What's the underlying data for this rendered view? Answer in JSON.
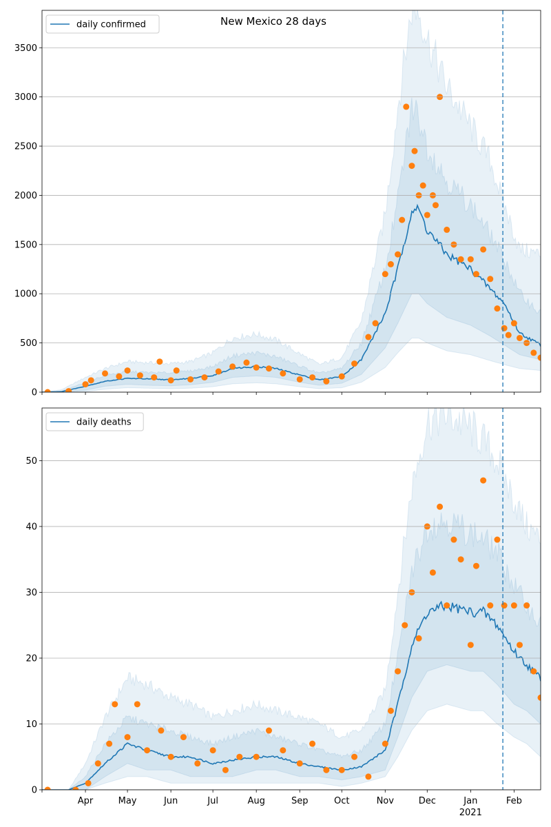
{
  "chart_data": [
    {
      "type": "line",
      "title": "New Mexico 28 days",
      "legend": {
        "label": "daily confirmed",
        "placement": "top-left"
      },
      "xlim": [
        "2020-03-01",
        "2021-02-20"
      ],
      "ylim": [
        0,
        3880
      ],
      "yticks": [
        0,
        500,
        1000,
        1500,
        2000,
        2500,
        3000,
        3500
      ],
      "grid": "horizontal",
      "forecast_start": "2021-01-24",
      "colors": {
        "line": "#1f77b4",
        "points": "#ff7f0e",
        "band": "#1f77b4"
      },
      "line_anchors": {
        "x": [
          "2020-03-01",
          "2020-03-15",
          "2020-04-01",
          "2020-04-15",
          "2020-05-01",
          "2020-05-15",
          "2020-06-01",
          "2020-06-15",
          "2020-07-01",
          "2020-07-15",
          "2020-08-01",
          "2020-08-15",
          "2020-09-01",
          "2020-09-15",
          "2020-10-01",
          "2020-10-15",
          "2020-11-01",
          "2020-11-10",
          "2020-11-20",
          "2020-11-25",
          "2020-12-01",
          "2020-12-15",
          "2021-01-01",
          "2021-01-15",
          "2021-01-25",
          "2021-02-05",
          "2021-02-20"
        ],
        "y": [
          0,
          5,
          60,
          110,
          140,
          135,
          125,
          140,
          170,
          240,
          260,
          240,
          175,
          125,
          160,
          330,
          800,
          1250,
          1850,
          1850,
          1650,
          1400,
          1250,
          1050,
          900,
          600,
          480
        ]
      },
      "bands": [
        {
          "lower": [
            0,
            0,
            20,
            60,
            80,
            70,
            65,
            75,
            100,
            150,
            165,
            150,
            100,
            70,
            90,
            180,
            450,
            700,
            1000,
            1000,
            900,
            760,
            680,
            570,
            480,
            380,
            330
          ],
          "upper": [
            0,
            10,
            100,
            170,
            210,
            200,
            195,
            215,
            260,
            370,
            400,
            360,
            265,
            190,
            240,
            500,
            1250,
            1950,
            2900,
            2800,
            2500,
            2150,
            1900,
            1600,
            1350,
            1000,
            800
          ]
        },
        {
          "lower": [
            0,
            0,
            5,
            30,
            45,
            40,
            35,
            40,
            55,
            85,
            95,
            85,
            55,
            35,
            45,
            100,
            250,
            400,
            550,
            550,
            500,
            420,
            380,
            320,
            280,
            240,
            220
          ],
          "upper": [
            0,
            25,
            150,
            240,
            310,
            300,
            290,
            310,
            400,
            550,
            590,
            530,
            390,
            280,
            350,
            720,
            1800,
            2900,
            3900,
            3880,
            3600,
            3100,
            2700,
            2350,
            1900,
            1450,
            1400
          ]
        }
      ],
      "points": {
        "x": [
          "2020-03-05",
          "2020-03-20",
          "2020-04-01",
          "2020-04-05",
          "2020-04-15",
          "2020-04-25",
          "2020-05-01",
          "2020-05-10",
          "2020-05-20",
          "2020-05-24",
          "2020-06-01",
          "2020-06-05",
          "2020-06-15",
          "2020-06-25",
          "2020-07-05",
          "2020-07-15",
          "2020-07-25",
          "2020-08-01",
          "2020-08-10",
          "2020-08-20",
          "2020-09-01",
          "2020-09-10",
          "2020-09-20",
          "2020-10-01",
          "2020-10-10",
          "2020-10-20",
          "2020-10-25",
          "2020-11-01",
          "2020-11-05",
          "2020-11-10",
          "2020-11-13",
          "2020-11-16",
          "2020-11-20",
          "2020-11-22",
          "2020-11-25",
          "2020-11-28",
          "2020-12-01",
          "2020-12-05",
          "2020-12-07",
          "2020-12-10",
          "2020-12-15",
          "2020-12-20",
          "2020-12-25",
          "2021-01-01",
          "2021-01-05",
          "2021-01-10",
          "2021-01-15",
          "2021-01-20",
          "2021-01-25",
          "2021-01-28",
          "2021-02-01",
          "2021-02-05",
          "2021-02-10",
          "2021-02-15",
          "2021-02-20"
        ],
        "y": [
          0,
          10,
          80,
          120,
          190,
          160,
          220,
          170,
          150,
          310,
          120,
          220,
          130,
          150,
          210,
          260,
          300,
          250,
          240,
          190,
          130,
          150,
          110,
          160,
          290,
          560,
          700,
          1200,
          1300,
          1400,
          1750,
          2900,
          2300,
          2450,
          2000,
          2100,
          1800,
          2000,
          1900,
          3000,
          1650,
          1500,
          1350,
          1350,
          1200,
          1450,
          1150,
          850,
          650,
          580,
          700,
          550,
          500,
          400,
          350
        ]
      }
    },
    {
      "type": "line",
      "legend": {
        "label": "daily deaths",
        "placement": "top-left"
      },
      "xlim": [
        "2020-03-01",
        "2021-02-20"
      ],
      "ylim": [
        0,
        58
      ],
      "yticks": [
        0,
        10,
        20,
        30,
        40,
        50
      ],
      "xticks": [
        "Apr",
        "May",
        "Jun",
        "Jul",
        "Aug",
        "Sep",
        "Oct",
        "Nov",
        "Dec",
        "Jan",
        "Feb"
      ],
      "xtick_dates": [
        "2020-04-01",
        "2020-05-01",
        "2020-06-01",
        "2020-07-01",
        "2020-08-01",
        "2020-09-01",
        "2020-10-01",
        "2020-11-01",
        "2020-12-01",
        "2021-01-01",
        "2021-02-01"
      ],
      "year_label": "2021",
      "grid": "horizontal",
      "forecast_start": "2021-01-24",
      "colors": {
        "line": "#1f77b4",
        "points": "#ff7f0e",
        "band": "#1f77b4"
      },
      "line_anchors": {
        "x": [
          "2020-03-01",
          "2020-03-20",
          "2020-04-01",
          "2020-04-15",
          "2020-05-01",
          "2020-05-15",
          "2020-06-01",
          "2020-06-15",
          "2020-07-01",
          "2020-07-15",
          "2020-08-01",
          "2020-08-15",
          "2020-09-01",
          "2020-09-15",
          "2020-10-01",
          "2020-10-15",
          "2020-11-01",
          "2020-11-10",
          "2020-11-20",
          "2020-12-01",
          "2020-12-15",
          "2021-01-01",
          "2021-01-10",
          "2021-01-20",
          "2021-02-01",
          "2021-02-10",
          "2021-02-20"
        ],
        "y": [
          0,
          0,
          1,
          4,
          7,
          6,
          5,
          5,
          4,
          4.5,
          5,
          5,
          4,
          3.5,
          3,
          3.5,
          6,
          13,
          22,
          27,
          28,
          27,
          27,
          25,
          21,
          19,
          17
        ]
      },
      "bands": [
        {
          "lower": [
            0,
            0,
            0,
            2,
            4,
            3,
            3,
            2,
            2,
            2,
            3,
            3,
            2,
            2,
            1.5,
            2,
            3,
            8,
            14,
            18,
            19,
            18,
            18,
            16,
            13,
            12,
            10
          ],
          "upper": [
            0,
            0,
            2,
            7,
            11,
            10,
            9,
            8,
            7,
            8,
            9,
            8,
            7,
            6,
            5,
            6,
            10,
            20,
            33,
            40,
            41,
            39,
            38,
            36,
            31,
            28,
            25
          ]
        },
        {
          "lower": [
            0,
            0,
            0,
            1,
            2,
            2,
            1,
            1,
            1,
            1,
            1,
            1,
            1,
            1,
            0.5,
            1,
            2,
            5,
            9,
            12,
            13,
            12,
            12,
            10,
            8,
            7,
            5
          ],
          "upper": [
            0,
            0,
            4,
            11,
            17,
            16,
            14,
            13,
            11,
            12,
            13,
            12,
            11,
            10,
            8,
            9,
            15,
            30,
            46,
            56,
            57,
            55,
            53,
            50,
            44,
            40,
            38
          ]
        }
      ],
      "points": {
        "x": [
          "2020-03-05",
          "2020-03-25",
          "2020-04-03",
          "2020-04-10",
          "2020-04-18",
          "2020-04-22",
          "2020-05-01",
          "2020-05-08",
          "2020-05-15",
          "2020-05-25",
          "2020-06-01",
          "2020-06-10",
          "2020-06-20",
          "2020-07-01",
          "2020-07-10",
          "2020-07-20",
          "2020-08-01",
          "2020-08-10",
          "2020-08-20",
          "2020-09-01",
          "2020-09-10",
          "2020-09-20",
          "2020-10-01",
          "2020-10-10",
          "2020-10-20",
          "2020-11-01",
          "2020-11-05",
          "2020-11-10",
          "2020-11-15",
          "2020-11-20",
          "2020-11-25",
          "2020-12-01",
          "2020-12-05",
          "2020-12-10",
          "2020-12-15",
          "2020-12-20",
          "2020-12-25",
          "2021-01-01",
          "2021-01-05",
          "2021-01-10",
          "2021-01-15",
          "2021-01-20",
          "2021-01-25",
          "2021-02-01",
          "2021-02-05",
          "2021-02-10",
          "2021-02-15",
          "2021-02-20"
        ],
        "y": [
          0,
          0,
          1,
          4,
          7,
          13,
          8,
          13,
          6,
          9,
          5,
          8,
          4,
          6,
          3,
          5,
          5,
          9,
          6,
          4,
          7,
          3,
          3,
          5,
          2,
          7,
          12,
          18,
          25,
          30,
          23,
          40,
          33,
          43,
          28,
          38,
          35,
          22,
          34,
          47,
          28,
          38,
          28,
          28,
          22,
          28,
          18,
          14
        ]
      }
    }
  ]
}
